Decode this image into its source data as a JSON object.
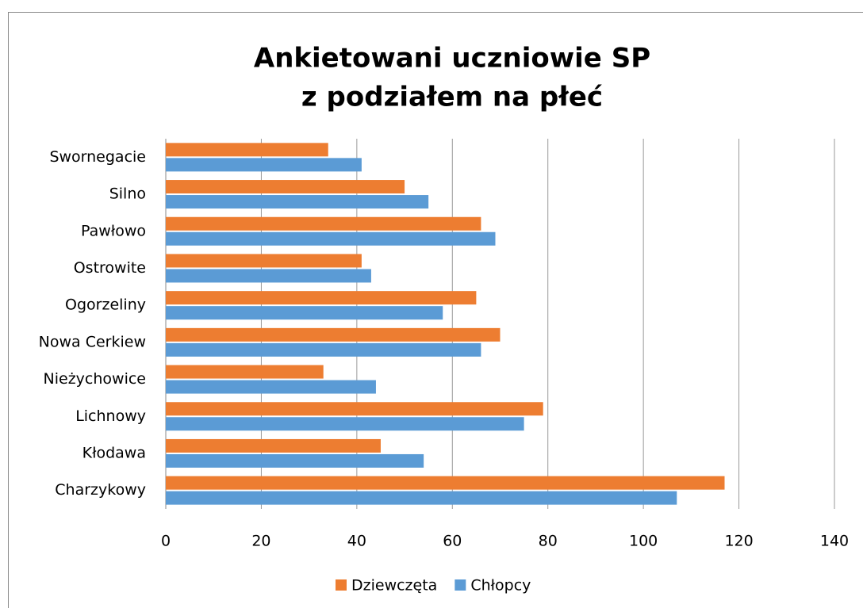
{
  "chart_data": {
    "type": "hbar",
    "title": [
      "Ankietowani uczniowie SP",
      "z podziałem na płeć"
    ],
    "categories": [
      "Charzykowy",
      "Kłodawa",
      "Lichnowy",
      "Nieżychowice",
      "Nowa Cerkiew",
      "Ogorzeliny",
      "Ostrowite",
      "Pawłowo",
      "Silno",
      "Swornegacie"
    ],
    "series": [
      {
        "name": "Dziewczęta",
        "color": "#ed7d31",
        "values": [
          117,
          45,
          79,
          33,
          70,
          65,
          41,
          66,
          50,
          34
        ]
      },
      {
        "name": "Chłopcy",
        "color": "#5b9bd5",
        "values": [
          107,
          54,
          75,
          44,
          66,
          58,
          43,
          69,
          55,
          41
        ]
      }
    ],
    "xlim": [
      0,
      140
    ],
    "xticks": [
      0,
      20,
      40,
      60,
      80,
      100,
      120,
      140
    ],
    "grid": true,
    "legend": "bottom"
  }
}
